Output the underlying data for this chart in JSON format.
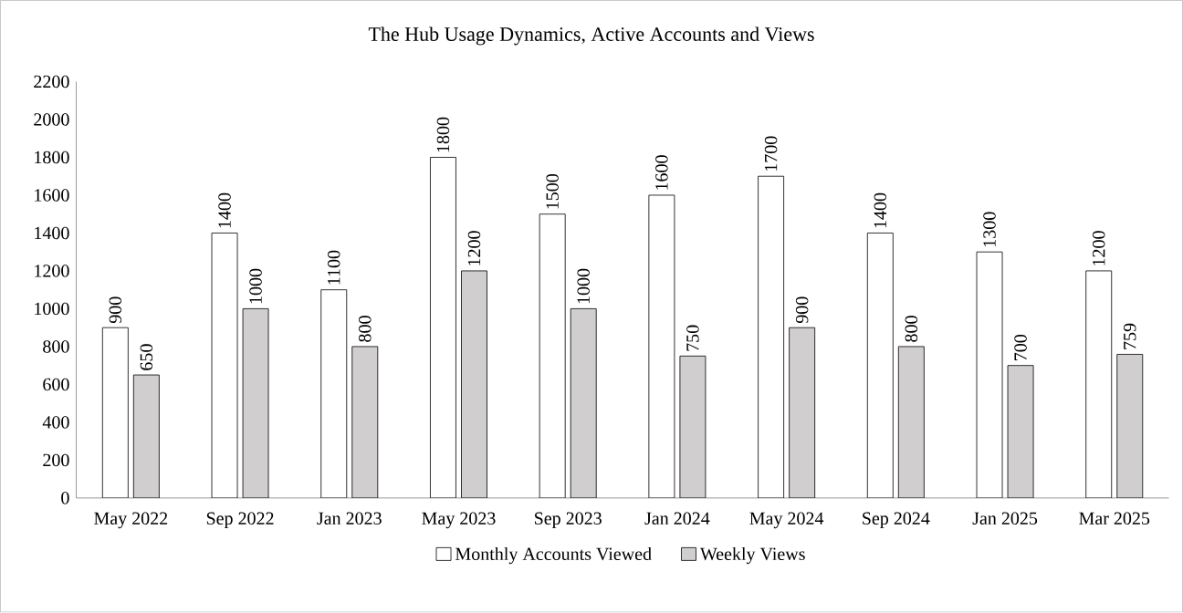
{
  "chart_data": {
    "type": "bar",
    "title": "The Hub Usage Dynamics, Active Accounts and Views",
    "categories": [
      "May 2022",
      "Sep 2022",
      "Jan 2023",
      "May 2023",
      "Sep 2023",
      "Jan 2024",
      "May 2024",
      "Sep 2024",
      "Jan 2025",
      "Mar 2025"
    ],
    "series": [
      {
        "name": "Monthly Accounts Viewed",
        "color": "#ffffff",
        "values": [
          900,
          1400,
          1100,
          1800,
          1500,
          1600,
          1700,
          1400,
          1300,
          1200
        ]
      },
      {
        "name": "Weekly Views",
        "color": "#d0cece",
        "values": [
          650,
          1000,
          800,
          1200,
          1000,
          750,
          900,
          800,
          700,
          759
        ]
      }
    ],
    "ylim": [
      0,
      2200
    ],
    "yticks": [
      0,
      200,
      400,
      600,
      800,
      1000,
      1200,
      1400,
      1600,
      1800,
      2000,
      2200
    ],
    "data_labels": true,
    "legend": "bottom",
    "grid": false
  }
}
